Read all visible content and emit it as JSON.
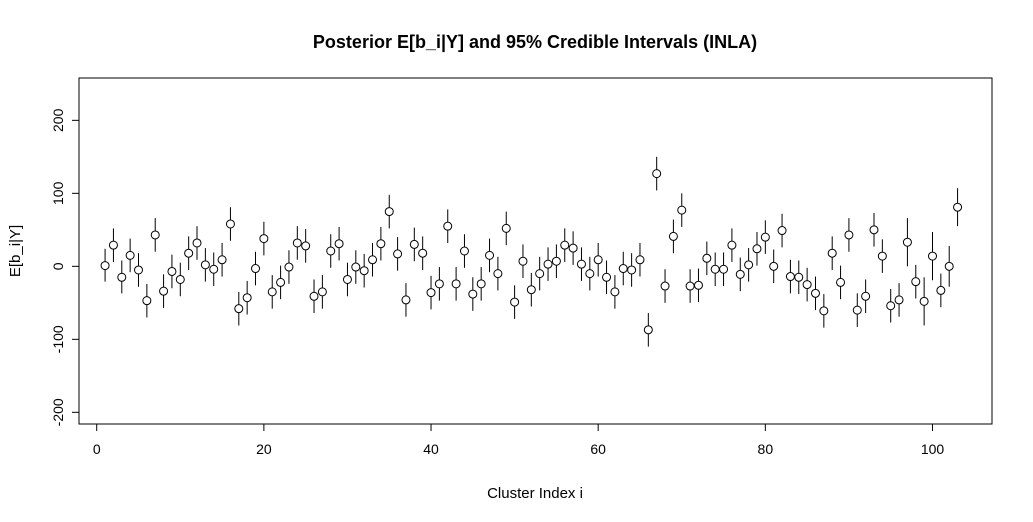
{
  "chart_data": {
    "type": "scatter",
    "title": "Posterior E[b_i|Y] and 95% Credible Intervals (INLA)",
    "xlabel": "Cluster Index i",
    "ylabel": "E[b_i|Y]",
    "xlim": [
      -2.12,
      107.12
    ],
    "ylim": [
      -216,
      258
    ],
    "xticks": [
      0,
      20,
      40,
      60,
      80,
      100
    ],
    "yticks": [
      -200,
      -100,
      0,
      100,
      200
    ],
    "xtick_labels": [
      "0",
      "20",
      "40",
      "60",
      "80",
      "100"
    ],
    "ytick_labels": [
      "-200",
      "-100",
      "0",
      "100",
      "200"
    ],
    "grid": false,
    "legend": "none",
    "marker": "open-circle",
    "series": [
      {
        "x": [
          1,
          2,
          3,
          4,
          5,
          6,
          7,
          8,
          9,
          10,
          11,
          12,
          13,
          14,
          15,
          16,
          17,
          18,
          19,
          20,
          21,
          22,
          23,
          24,
          25,
          26,
          27,
          28,
          29,
          30,
          31,
          32,
          33,
          34,
          35,
          36,
          37,
          38,
          39,
          40,
          41,
          42,
          43,
          44,
          45,
          46,
          47,
          48,
          49,
          50,
          51,
          52,
          53,
          54,
          55,
          56,
          57,
          58,
          59,
          60,
          61,
          62,
          63,
          64,
          65,
          66,
          67,
          68,
          69,
          70,
          71,
          72,
          73,
          74,
          75,
          76,
          77,
          78,
          79,
          80,
          81,
          82,
          83,
          84,
          85,
          86,
          87,
          88,
          89,
          90,
          91,
          92,
          93,
          94,
          95,
          96,
          97,
          98,
          99,
          100,
          101,
          102,
          103
        ],
        "y": [
          1,
          29,
          -15,
          15,
          -5,
          -47,
          43,
          -34,
          -7,
          -18,
          18,
          32,
          2,
          -4,
          9,
          58,
          -58,
          -43,
          -3,
          38,
          -35,
          -22,
          -1,
          32,
          28,
          -41,
          -35,
          21,
          31,
          -18,
          -1,
          -6,
          9,
          31,
          75,
          17,
          -46,
          30,
          18,
          -36,
          -24,
          55,
          -24,
          21,
          -38,
          -24,
          15,
          -10,
          52,
          -49,
          7,
          -32,
          -10,
          3,
          7,
          29,
          25,
          3,
          -10,
          9,
          -15,
          -35,
          -3,
          -5,
          9,
          -87,
          127,
          -27,
          41,
          77,
          -27,
          -26,
          11,
          -4,
          -4,
          29,
          -11,
          2,
          24,
          40,
          0,
          49,
          -14,
          -15,
          -25,
          -37,
          -61,
          18,
          -22,
          43,
          -60,
          -41,
          50,
          14,
          -54,
          -46,
          33,
          -21,
          -48,
          14,
          -33,
          0,
          81
        ],
        "lower": [
          -21,
          6,
          -37,
          -8,
          -28,
          -70,
          20,
          -57,
          -30,
          -41,
          -5,
          9,
          -21,
          -27,
          -14,
          35,
          -81,
          -66,
          -26,
          15,
          -58,
          -45,
          -24,
          9,
          5,
          -64,
          -58,
          -2,
          8,
          -41,
          -24,
          -29,
          -14,
          8,
          52,
          -6,
          -69,
          7,
          -5,
          -59,
          -47,
          32,
          -47,
          -2,
          -61,
          -47,
          -8,
          -33,
          29,
          -72,
          -16,
          -55,
          -33,
          -20,
          -16,
          6,
          2,
          -20,
          -33,
          -14,
          -38,
          -58,
          -26,
          -28,
          -14,
          -110,
          104,
          -50,
          18,
          54,
          -50,
          -49,
          -12,
          -27,
          -27,
          6,
          -34,
          -21,
          1,
          17,
          -23,
          26,
          -37,
          -38,
          -48,
          -60,
          -84,
          -5,
          -45,
          20,
          -83,
          -64,
          27,
          -9,
          -77,
          -69,
          0,
          -44,
          -81,
          -19,
          -56,
          -28,
          55
        ],
        "upper": [
          24,
          52,
          8,
          38,
          18,
          -24,
          66,
          -11,
          16,
          5,
          41,
          55,
          25,
          19,
          32,
          81,
          -35,
          -20,
          20,
          61,
          -12,
          1,
          22,
          55,
          51,
          -18,
          -12,
          44,
          54,
          5,
          22,
          17,
          32,
          54,
          98,
          40,
          -23,
          53,
          41,
          -13,
          -1,
          78,
          -1,
          44,
          -15,
          -1,
          38,
          13,
          75,
          -26,
          30,
          -9,
          13,
          26,
          30,
          52,
          48,
          26,
          13,
          32,
          8,
          -12,
          20,
          18,
          32,
          -64,
          150,
          -4,
          64,
          100,
          -4,
          -3,
          34,
          19,
          19,
          52,
          12,
          25,
          47,
          63,
          23,
          72,
          9,
          8,
          -2,
          -14,
          -38,
          41,
          1,
          66,
          -37,
          -18,
          73,
          37,
          -31,
          -23,
          66,
          2,
          -15,
          47,
          -10,
          28,
          107
        ]
      }
    ]
  }
}
